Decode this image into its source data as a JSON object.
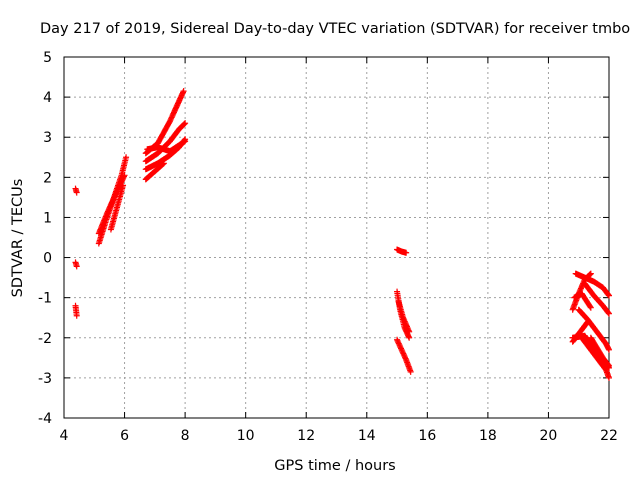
{
  "chart_data": {
    "type": "scatter",
    "title": "Day 217 of 2019, Sidereal Day-to-day VTEC variation (SDTVAR) for receiver tmbo",
    "xlabel": "GPS time / hours",
    "ylabel": "SDTVAR / TECUs",
    "xlim": [
      4,
      22
    ],
    "ylim": [
      -4,
      5
    ],
    "xticks": [
      4,
      6,
      8,
      10,
      12,
      14,
      16,
      18,
      20,
      22
    ],
    "yticks": [
      -4,
      -3,
      -2,
      -1,
      0,
      1,
      2,
      3,
      4,
      5
    ],
    "grid": true,
    "marker": "+",
    "color": "#ff0000",
    "segments": [
      {
        "x": [
          4.38,
          4.42
        ],
        "y": [
          1.72,
          1.62
        ]
      },
      {
        "x": [
          4.38,
          4.42
        ],
        "y": [
          -0.12,
          -0.22
        ]
      },
      {
        "x": [
          4.38,
          4.42
        ],
        "y": [
          -1.2,
          -1.45
        ]
      },
      {
        "x": [
          5.15,
          5.4,
          5.65,
          5.9,
          6.05
        ],
        "y": [
          0.35,
          0.95,
          1.5,
          2.05,
          2.5
        ]
      },
      {
        "x": [
          5.15,
          5.45,
          5.75,
          6.0
        ],
        "y": [
          0.6,
          1.15,
          1.65,
          2.05
        ]
      },
      {
        "x": [
          5.55,
          5.75,
          5.95
        ],
        "y": [
          0.7,
          1.25,
          1.8
        ]
      },
      {
        "x": [
          6.7,
          7.1,
          7.5,
          7.8,
          7.95
        ],
        "y": [
          2.6,
          2.85,
          3.4,
          3.9,
          4.15
        ]
      },
      {
        "x": [
          6.7,
          7.1,
          7.5,
          7.8,
          8.0
        ],
        "y": [
          2.4,
          2.6,
          2.9,
          3.2,
          3.35
        ]
      },
      {
        "x": [
          6.7,
          7.1,
          7.5,
          7.8,
          8.0
        ],
        "y": [
          2.2,
          2.35,
          2.55,
          2.75,
          2.95
        ]
      },
      {
        "x": [
          6.7,
          7.0,
          7.3
        ],
        "y": [
          1.95,
          2.15,
          2.35
        ]
      },
      {
        "x": [
          6.75,
          7.1,
          7.5,
          7.8,
          8.0
        ],
        "y": [
          2.7,
          2.75,
          2.65,
          2.8,
          2.9
        ]
      },
      {
        "x": [
          15.0,
          15.15,
          15.3
        ],
        "y": [
          0.2,
          0.15,
          0.12
        ]
      },
      {
        "x": [
          15.0,
          15.1,
          15.25,
          15.4
        ],
        "y": [
          -0.85,
          -1.3,
          -1.75,
          -2.0
        ]
      },
      {
        "x": [
          15.05,
          15.2,
          15.4
        ],
        "y": [
          -1.1,
          -1.5,
          -1.85
        ]
      },
      {
        "x": [
          15.0,
          15.15,
          15.3,
          15.45
        ],
        "y": [
          -2.05,
          -2.3,
          -2.55,
          -2.85
        ]
      },
      {
        "x": [
          20.8,
          21.0,
          21.2,
          21.4
        ],
        "y": [
          -1.3,
          -0.9,
          -0.55,
          -0.4
        ]
      },
      {
        "x": [
          20.9,
          21.2,
          21.5,
          21.8,
          22.0
        ],
        "y": [
          -0.4,
          -0.5,
          -0.6,
          -0.75,
          -0.95
        ]
      },
      {
        "x": [
          21.2,
          21.5,
          21.8,
          22.0
        ],
        "y": [
          -0.65,
          -0.95,
          -1.2,
          -1.4
        ]
      },
      {
        "x": [
          20.85,
          21.1,
          21.4
        ],
        "y": [
          -1.0,
          -0.9,
          -1.25
        ]
      },
      {
        "x": [
          21.0,
          21.3,
          21.6,
          21.9,
          22.0
        ],
        "y": [
          -1.3,
          -1.55,
          -1.85,
          -2.15,
          -2.3
        ]
      },
      {
        "x": [
          20.8,
          21.05,
          21.3
        ],
        "y": [
          -2.1,
          -1.85,
          -1.6
        ]
      },
      {
        "x": [
          20.8,
          21.2,
          21.5,
          21.8,
          22.0
        ],
        "y": [
          -2.0,
          -1.95,
          -2.3,
          -2.6,
          -2.75
        ]
      },
      {
        "x": [
          21.0,
          21.3,
          21.6,
          21.9,
          22.0
        ],
        "y": [
          -1.9,
          -2.2,
          -2.5,
          -2.8,
          -3.0
        ]
      },
      {
        "x": [
          21.4,
          21.6,
          21.8,
          22.0
        ],
        "y": [
          -2.0,
          -2.25,
          -2.5,
          -2.7
        ]
      }
    ]
  }
}
